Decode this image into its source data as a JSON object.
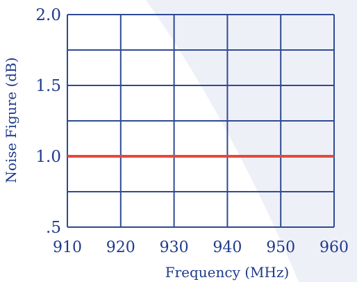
{
  "chart_data": {
    "type": "line",
    "title": "",
    "xlabel": "Frequency (MHz)",
    "ylabel": "Noise Figure (dB)",
    "xlim": [
      910,
      960
    ],
    "ylim": [
      0.5,
      2.0
    ],
    "x_ticks": [
      910,
      920,
      930,
      940,
      950,
      960
    ],
    "x_tick_labels": [
      "910",
      "920",
      "930",
      "940",
      "950",
      "960"
    ],
    "y_ticks": [
      0.5,
      1.0,
      1.5,
      2.0
    ],
    "y_tick_labels": [
      ".5",
      "1.0",
      "1.5",
      "2.0"
    ],
    "y_grid": [
      0.5,
      0.75,
      1.0,
      1.25,
      1.5,
      1.75,
      2.0
    ],
    "grid": true,
    "series": [
      {
        "x": [
          910,
          960
        ],
        "values": [
          1.0,
          1.0
        ]
      }
    ]
  },
  "colors": {
    "grid": "#2d4a92",
    "line": "#e8483a",
    "text": "#1e3a8c",
    "background_swoosh": "#eef0f8"
  }
}
